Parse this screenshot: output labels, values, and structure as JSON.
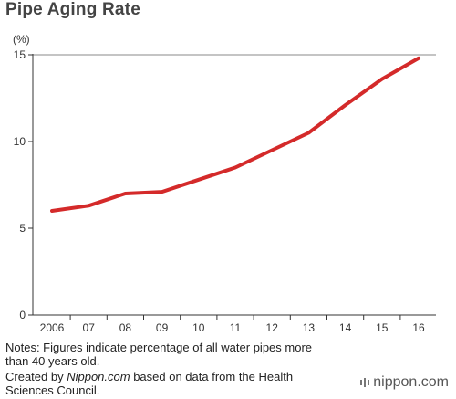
{
  "title": "Pipe Aging Rate",
  "notes": {
    "line1": "Notes: Figures indicate percentage of all water pipes more",
    "line2": "than 40 years old.",
    "credit_prefix": "Created by ",
    "credit_source": "Nippon.com",
    "credit_suffix": " based on data from the Health",
    "line4": "Sciences Council."
  },
  "logo": "nippon.com",
  "colors": {
    "line": "#d42a2a",
    "axis": "#333333",
    "grid": "#888888"
  },
  "chart_data": {
    "type": "line",
    "title": "Pipe Aging Rate",
    "ylabel": "(%)",
    "xlabel": "",
    "categories": [
      "2006",
      "07",
      "08",
      "09",
      "10",
      "11",
      "12",
      "13",
      "14",
      "15",
      "16"
    ],
    "series": [
      {
        "values": [
          6.0,
          6.3,
          7.0,
          7.1,
          7.8,
          8.5,
          9.5,
          10.5,
          12.1,
          13.6,
          14.8
        ]
      }
    ],
    "yticks": [
      0,
      5,
      10,
      15
    ],
    "ylim": [
      0,
      15
    ],
    "grid": "top line only",
    "legend": "none"
  }
}
